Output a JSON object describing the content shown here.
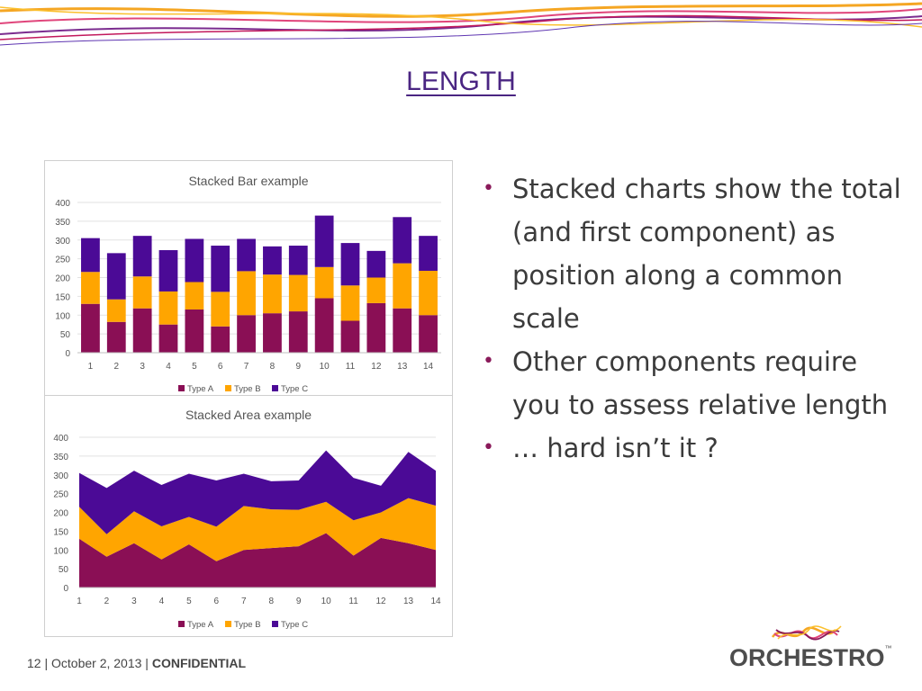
{
  "slide": {
    "title": "LENGTH",
    "bullets": [
      "Stacked charts show the total (and first component) as position along a common scale",
      "Other components require you to assess relative length",
      "… hard isn’t it ?"
    ],
    "footer": {
      "page": "12",
      "date": "October 2, 2013",
      "label": "CONFIDENTIAL"
    },
    "logo": {
      "name": "ORCHESTRO",
      "tm": "™"
    }
  },
  "colors": {
    "type_a": "#8a0f55",
    "type_b": "#ffa500",
    "type_c": "#4b0a96",
    "title": "#4a2582",
    "bullet": "#8a1a5a"
  },
  "chart_data": [
    {
      "type": "bar",
      "stacked": true,
      "title": "Stacked Bar example",
      "categories": [
        "1",
        "2",
        "3",
        "4",
        "5",
        "6",
        "7",
        "8",
        "9",
        "10",
        "11",
        "12",
        "13",
        "14"
      ],
      "series": [
        {
          "name": "Type A",
          "values": [
            130,
            82,
            118,
            75,
            115,
            70,
            100,
            105,
            110,
            145,
            85,
            132,
            118,
            100
          ]
        },
        {
          "name": "Type B",
          "values": [
            85,
            60,
            85,
            88,
            73,
            92,
            117,
            103,
            97,
            83,
            94,
            68,
            120,
            118
          ]
        },
        {
          "name": "Type C",
          "values": [
            90,
            123,
            108,
            110,
            115,
            123,
            86,
            75,
            78,
            137,
            113,
            71,
            123,
            93
          ]
        }
      ],
      "yticks": [
        "0",
        "50",
        "100",
        "150",
        "200",
        "250",
        "300",
        "350",
        "400"
      ],
      "ylim": [
        0,
        400
      ],
      "legend": "bottom"
    },
    {
      "type": "area",
      "stacked": true,
      "title": "Stacked Area example",
      "categories": [
        "1",
        "2",
        "3",
        "4",
        "5",
        "6",
        "7",
        "8",
        "9",
        "10",
        "11",
        "12",
        "13",
        "14"
      ],
      "series": [
        {
          "name": "Type A",
          "values": [
            130,
            82,
            118,
            75,
            115,
            70,
            100,
            105,
            110,
            145,
            85,
            132,
            118,
            100
          ]
        },
        {
          "name": "Type B",
          "values": [
            85,
            60,
            85,
            88,
            73,
            92,
            117,
            103,
            97,
            83,
            94,
            68,
            120,
            118
          ]
        },
        {
          "name": "Type C",
          "values": [
            90,
            123,
            108,
            110,
            115,
            123,
            86,
            75,
            78,
            137,
            113,
            71,
            123,
            93
          ]
        }
      ],
      "yticks": [
        "0",
        "50",
        "100",
        "150",
        "200",
        "250",
        "300",
        "350",
        "400"
      ],
      "ylim": [
        0,
        400
      ],
      "legend": "bottom"
    }
  ]
}
